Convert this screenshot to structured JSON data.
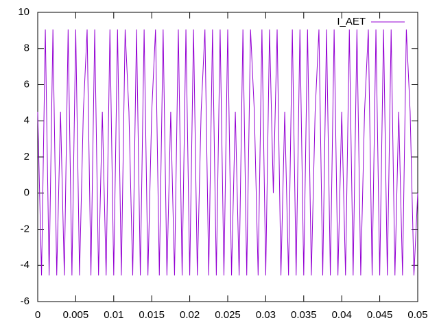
{
  "chart_data": {
    "type": "line",
    "x": [
      0,
      0.0005,
      0.001,
      0.0015,
      0.002,
      0.0025,
      0.003,
      0.0035,
      0.004,
      0.0045,
      0.005,
      0.0055,
      0.006,
      0.0065,
      0.007,
      0.0075,
      0.008,
      0.0085,
      0.009,
      0.0095,
      0.01,
      0.0105,
      0.011,
      0.0115,
      0.012,
      0.0125,
      0.013,
      0.0135,
      0.014,
      0.0145,
      0.015,
      0.0155,
      0.016,
      0.0165,
      0.017,
      0.0175,
      0.018,
      0.0185,
      0.019,
      0.0195,
      0.02,
      0.0205,
      0.021,
      0.0215,
      0.022,
      0.0225,
      0.023,
      0.0235,
      0.024,
      0.0245,
      0.025,
      0.0255,
      0.026,
      0.0265,
      0.027,
      0.0275,
      0.028,
      0.0285,
      0.029,
      0.0295,
      0.03,
      0.0305,
      0.031,
      0.0315,
      0.032,
      0.0325,
      0.033,
      0.0335,
      0.034,
      0.0345,
      0.035,
      0.0355,
      0.036,
      0.0365,
      0.037,
      0.0375,
      0.038,
      0.0385,
      0.039,
      0.0395,
      0.04,
      0.0405,
      0.041,
      0.0415,
      0.042,
      0.0425,
      0.043,
      0.0435,
      0.044,
      0.0445,
      0.045,
      0.0455,
      0.046,
      0.0465,
      0.047,
      0.0475,
      0.048,
      0.0485,
      0.049,
      0.0495,
      0.05
    ],
    "series": [
      {
        "name": "I_AET",
        "color": "#9400d3",
        "values": [
          4.5,
          -4.55,
          9.05,
          -4.55,
          9.05,
          -4.55,
          4.5,
          -4.55,
          9.05,
          -4.55,
          9.05,
          -4.55,
          4.5,
          9.05,
          -4.55,
          9.05,
          -4.55,
          4.5,
          -4.55,
          9.05,
          -4.55,
          9.05,
          -4.55,
          9.05,
          4.5,
          -4.55,
          9.05,
          -4.55,
          9.05,
          -4.55,
          4.5,
          9.05,
          -4.55,
          9.05,
          -4.55,
          4.5,
          -4.55,
          9.05,
          -4.55,
          9.05,
          -4.55,
          9.05,
          -4.55,
          4.5,
          9.05,
          -4.55,
          9.05,
          -4.55,
          9.05,
          -4.55,
          9.05,
          -4.55,
          4.5,
          -4.55,
          9.05,
          -4.55,
          9.05,
          4.5,
          -4.55,
          9.05,
          -4.55,
          9.05,
          0,
          9.05,
          -4.55,
          4.5,
          -4.55,
          9.05,
          -4.55,
          9.05,
          -4.55,
          9.05,
          -4.55,
          4.5,
          9.05,
          -4.55,
          9.05,
          -4.55,
          9.05,
          -4.55,
          4.5,
          -4.55,
          9.05,
          -4.55,
          9.05,
          -4.55,
          4.5,
          9.05,
          -4.55,
          9.05,
          -4.55,
          9.05,
          -4.55,
          9.05,
          -4.55,
          4.5,
          -4.55,
          9.05,
          4.5,
          -4.55,
          0
        ]
      }
    ],
    "xlim": [
      0,
      0.05
    ],
    "xticks": [
      0,
      0.005,
      0.01,
      0.015,
      0.02,
      0.025,
      0.03,
      0.035,
      0.04,
      0.045,
      0.05
    ],
    "ylim": [
      -6,
      10
    ],
    "yticks": [
      -6,
      -4,
      -2,
      0,
      2,
      4,
      6,
      8,
      10
    ],
    "legend": "top-right",
    "grid": false
  }
}
